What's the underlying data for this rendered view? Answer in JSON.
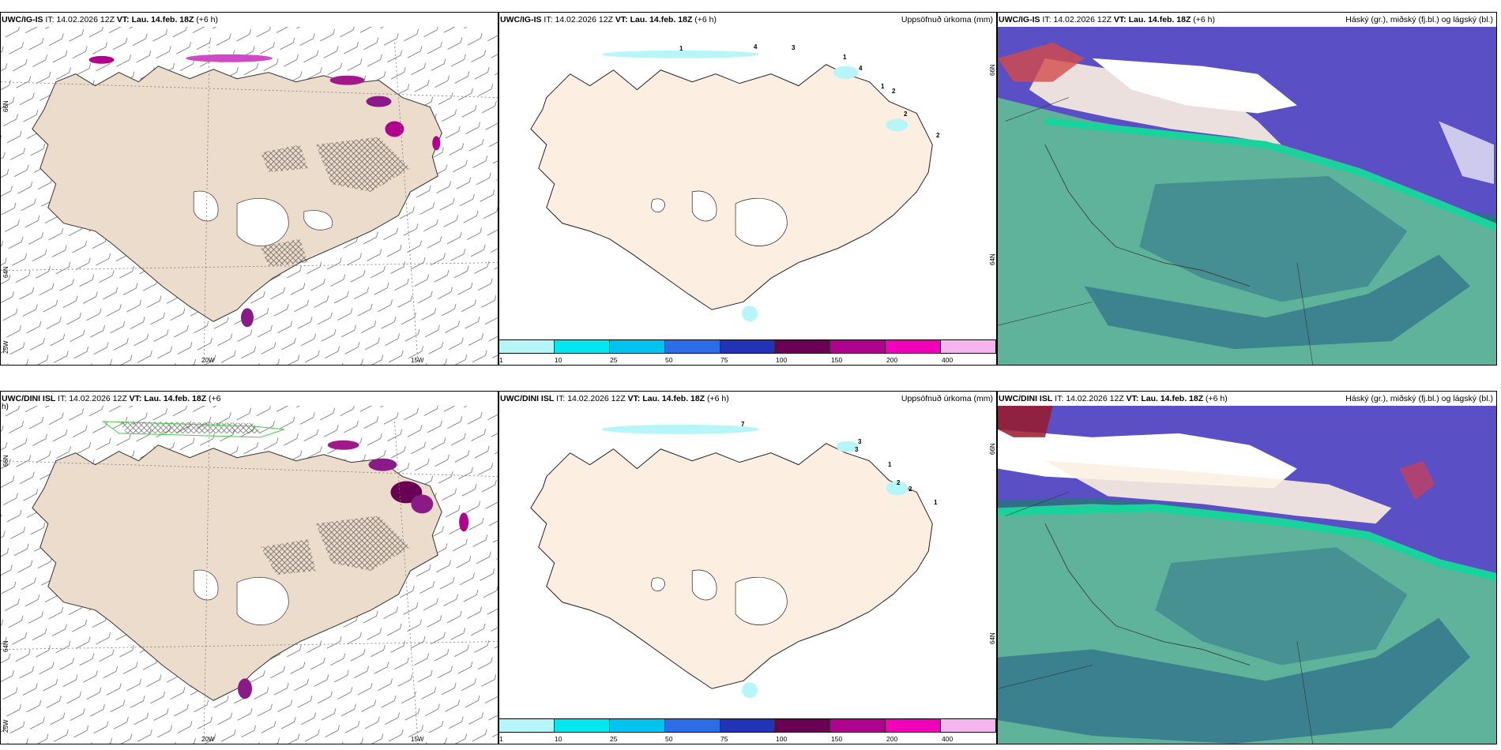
{
  "row1": {
    "p1": {
      "model": "UWC/IG-IS",
      "it_label": "IT:",
      "it": "14.02.2026 12Z",
      "vt_label": "VT:",
      "vt": "Lau. 14.feb. 18Z",
      "lead": "(+6 h)",
      "title": ""
    },
    "p2": {
      "model": "UWC/IG-IS",
      "it_label": "IT:",
      "it": "14.02.2026 12Z",
      "vt_label": "VT:",
      "vt": "Lau. 14.feb. 18Z",
      "lead": "(+6 h)",
      "title": "Uppsöfnuð úrkoma (mm)"
    },
    "p3": {
      "model": "UWC/IG-IS",
      "it_label": "IT:",
      "it": "14.02.2026 12Z",
      "vt_label": "VT:",
      "vt": "Lau. 14.feb. 18Z",
      "lead": "(+6 h)",
      "title": "Háský (gr.), miðský (fj.bl.) og lágský (bl.)"
    }
  },
  "row2": {
    "p1": {
      "model": "UWC/DINI ISL",
      "it_label": "IT:",
      "it": "14.02.2026 12Z",
      "vt_label": "VT:",
      "vt": "Lau. 14.feb. 18Z",
      "lead": "(+6",
      "lead2": "h)",
      "title": ""
    },
    "p2": {
      "model": "UWC/DINI ISL",
      "it_label": "IT:",
      "it": "14.02.2026 12Z",
      "vt_label": "VT:",
      "vt": "Lau. 14.feb. 18Z",
      "lead": "(+6 h)",
      "title": "Uppsöfnuð úrkoma (mm)"
    },
    "p3": {
      "model": "UWC/DINI ISL",
      "it_label": "IT:",
      "it": "14.02.2026 12Z",
      "vt_label": "VT:",
      "vt": "Lau. 14.feb. 18Z",
      "lead": "(+6 h)",
      "title": "Háský (gr.), miðský (fj.bl.) og lágský (bl.)"
    }
  },
  "axes": {
    "lat_66": "66N",
    "lat_64": "64N",
    "lon_25": "25W",
    "lon_20": "20W",
    "lon_15": "15W"
  },
  "legend": {
    "labels": [
      "1",
      "10",
      "25",
      "50",
      "75",
      "100",
      "150",
      "200",
      "400"
    ],
    "colors": [
      "#b6f6f8",
      "#00e7ef",
      "#00c3f0",
      "#2e6de8",
      "#2233b8",
      "#6a0054",
      "#b0008e",
      "#f000b8",
      "#f5b6f0"
    ]
  },
  "precip_labels_row1": [
    "1",
    "4",
    "3",
    "1",
    "4",
    "1",
    "2",
    "2",
    "2"
  ],
  "precip_labels_row2": [
    "7",
    "3",
    "3",
    "1",
    "2",
    "2",
    "1"
  ],
  "colors": {
    "land_wind": "#ecdccb",
    "land_precip": "#fcefe2",
    "sea_dark": "#2f6f8a",
    "cloud_low": "#5fb39a",
    "cloud_mid": "#5a4fc4",
    "cloud_high_green": "#18d49c"
  }
}
